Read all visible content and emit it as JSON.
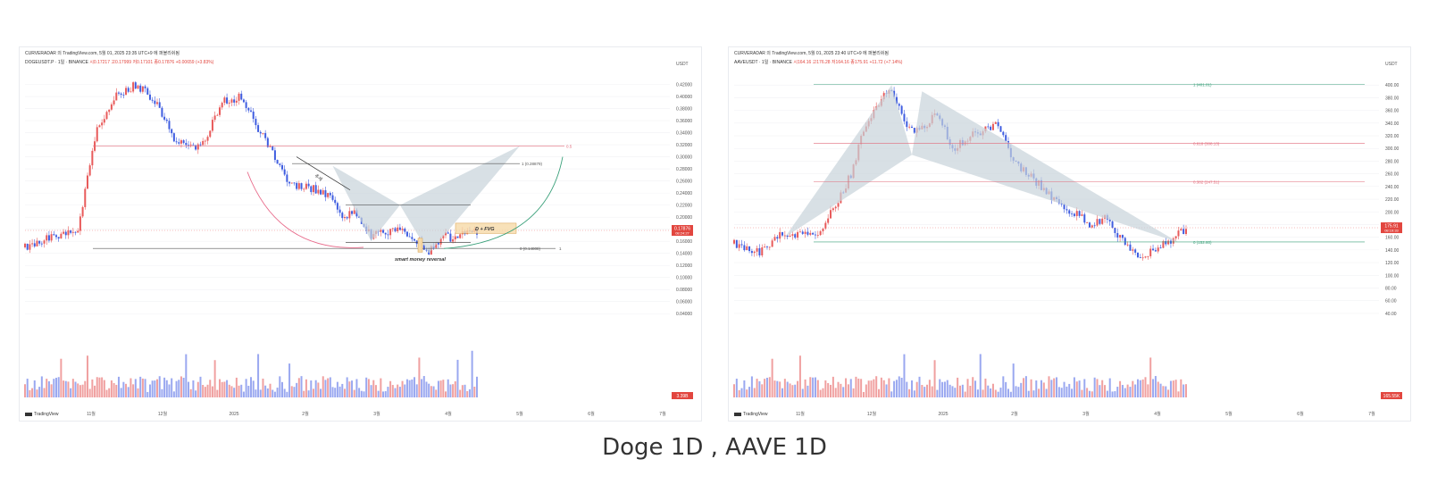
{
  "caption": "Doge 1D , AAVE 1D",
  "colors": {
    "up": "#e85a5a",
    "down": "#3f5de0",
    "vol_up": "#f0a0a0",
    "vol_down": "#9aa8f0",
    "pattern": "#c7d3da",
    "fib_red": "#e26b7b",
    "fib_green": "#3aa07a",
    "grid": "#f1f2f4"
  },
  "charts": [
    {
      "id": "doge",
      "header": "CURVERADAR 의 TradingView.com, 5월 01, 2025 23:35 UTC+9 에 퍼블리쉬됨",
      "symbol_line": "DOGEUSDT.P · 1일 · BINANCE",
      "ohlc_text": "시0.17217 고0.17999 저0.17101 종0.17876 +0.00659 (+3.83%)",
      "price_unit": "USDT",
      "last_price_label": "0.17876",
      "last_price_time": "08:24:27",
      "volume_label": "3.39B",
      "tv_logo": "TradingView",
      "annotations": {
        "fvg": "D + FVG",
        "reversal": "smart money reversal",
        "trendline": "추세"
      },
      "fib_labels": [
        "0.5",
        "1 (0.28879)",
        "0 (0.14808)",
        "1"
      ],
      "chart_data": {
        "type": "candlestick",
        "y_ticks": [
          "0.42000",
          "0.40000",
          "0.38000",
          "0.36000",
          "0.34000",
          "0.32000",
          "0.30000",
          "0.28000",
          "0.26000",
          "0.24000",
          "0.22000",
          "0.20000",
          "0.18000",
          "0.16000",
          "0.14000",
          "0.12000",
          "0.10000",
          "0.08000",
          "0.06000",
          "0.04000"
        ],
        "x_ticks": [
          "11월",
          "12월",
          "2025",
          "2월",
          "3월",
          "4월",
          "5월",
          "6월",
          "7월"
        ],
        "ylim": [
          0.03,
          0.44
        ],
        "path": [
          [
            0,
            0.15
          ],
          [
            10,
            0.165
          ],
          [
            22,
            0.18
          ],
          [
            30,
            0.35
          ],
          [
            38,
            0.4
          ],
          [
            46,
            0.42
          ],
          [
            55,
            0.39
          ],
          [
            62,
            0.33
          ],
          [
            68,
            0.315
          ],
          [
            74,
            0.32
          ],
          [
            82,
            0.39
          ],
          [
            90,
            0.4
          ],
          [
            95,
            0.36
          ],
          [
            100,
            0.33
          ],
          [
            110,
            0.255
          ],
          [
            118,
            0.25
          ],
          [
            126,
            0.235
          ],
          [
            132,
            0.205
          ],
          [
            138,
            0.205
          ],
          [
            144,
            0.17
          ],
          [
            150,
            0.175
          ],
          [
            156,
            0.18
          ],
          [
            162,
            0.165
          ],
          [
            168,
            0.14
          ],
          [
            174,
            0.17
          ],
          [
            178,
            0.165
          ],
          [
            184,
            0.175
          ],
          [
            188,
            0.178
          ]
        ],
        "fib_levels": [
          0.5,
          1,
          0
        ],
        "fib_prices": [
          0.318,
          0.28879,
          0.14808
        ]
      }
    },
    {
      "id": "aave",
      "header": "CURVERADAR 의 TradingView.com, 5월 01, 2025 23:40 UTC+9 에 퍼블리쉬됨",
      "symbol_line": "AAVEUSDT · 1일 · BINANCE",
      "ohlc_text": "시164.16 고176.28 저164.16 종175.91 +11.72 (+7.14%)",
      "price_unit": "USDT",
      "last_price_label": "175.91",
      "last_price_time": "08:19:33",
      "volume_label": "165.55K",
      "tv_logo": "TradingView",
      "fib_labels": [
        "1 (401.01)",
        "0.618 (308.13)",
        "0.382 (247.51)",
        "0 (152.60)"
      ],
      "chart_data": {
        "type": "candlestick",
        "y_ticks": [
          "400.00",
          "380.00",
          "360.00",
          "340.00",
          "320.00",
          "300.00",
          "280.00",
          "260.00",
          "240.00",
          "220.00",
          "200.00",
          "180.00",
          "160.00",
          "140.00",
          "120.00",
          "100.00",
          "80.00",
          "60.00",
          "40.00"
        ],
        "x_ticks": [
          "11월",
          "12월",
          "2025",
          "2월",
          "3월",
          "4월",
          "5월",
          "6월",
          "7월"
        ],
        "ylim": [
          30,
          420
        ],
        "path": [
          [
            0,
            150
          ],
          [
            10,
            135
          ],
          [
            18,
            165
          ],
          [
            26,
            165
          ],
          [
            34,
            170
          ],
          [
            40,
            210
          ],
          [
            46,
            260
          ],
          [
            52,
            340
          ],
          [
            58,
            380
          ],
          [
            62,
            395
          ],
          [
            68,
            330
          ],
          [
            74,
            330
          ],
          [
            80,
            355
          ],
          [
            86,
            300
          ],
          [
            92,
            315
          ],
          [
            98,
            330
          ],
          [
            104,
            340
          ],
          [
            110,
            280
          ],
          [
            116,
            260
          ],
          [
            122,
            235
          ],
          [
            128,
            210
          ],
          [
            134,
            200
          ],
          [
            140,
            180
          ],
          [
            146,
            190
          ],
          [
            152,
            160
          ],
          [
            156,
            140
          ],
          [
            160,
            130
          ],
          [
            166,
            140
          ],
          [
            172,
            155
          ],
          [
            178,
            175
          ]
        ],
        "fib_levels": [
          1,
          0.618,
          0.382,
          0
        ],
        "fib_prices": [
          401.01,
          308.13,
          247.51,
          152.6
        ]
      }
    }
  ]
}
